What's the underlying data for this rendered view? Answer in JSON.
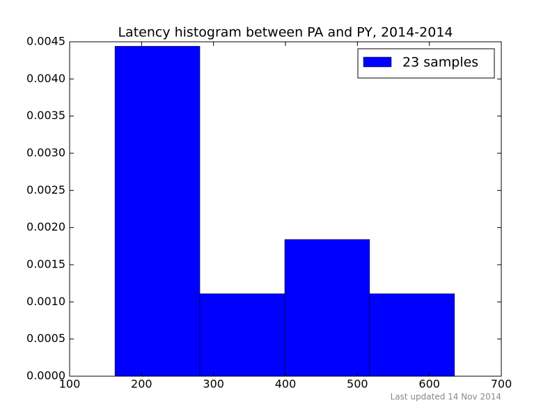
{
  "chart_data": {
    "type": "histogram",
    "title": "Latency histogram between PA and PY, 2014-2014",
    "bins": [
      163,
      281,
      399,
      517,
      635
    ],
    "series": [
      {
        "name": "23 samples",
        "color": "#0000ff",
        "values": [
          0.00444,
          0.00111,
          0.00184,
          0.00111
        ]
      }
    ],
    "xlim": [
      100,
      700
    ],
    "xticks": [
      100,
      200,
      300,
      400,
      500,
      600,
      700
    ],
    "ylim": [
      0,
      0.0045
    ],
    "yticks": [
      {
        "value": 0,
        "label": "0.0000"
      },
      {
        "value": 0.0005,
        "label": "0.0005"
      },
      {
        "value": 0.001,
        "label": "0.0010"
      },
      {
        "value": 0.0015,
        "label": "0.0015"
      },
      {
        "value": 0.002,
        "label": "0.0020"
      },
      {
        "value": 0.0025,
        "label": "0.0025"
      },
      {
        "value": 0.003,
        "label": "0.0030"
      },
      {
        "value": 0.0035,
        "label": "0.0035"
      },
      {
        "value": 0.004,
        "label": "0.0040"
      },
      {
        "value": 0.0045,
        "label": "0.0045"
      }
    ],
    "legend": "upper-right",
    "note": "Last updated 14 Nov 2014"
  }
}
